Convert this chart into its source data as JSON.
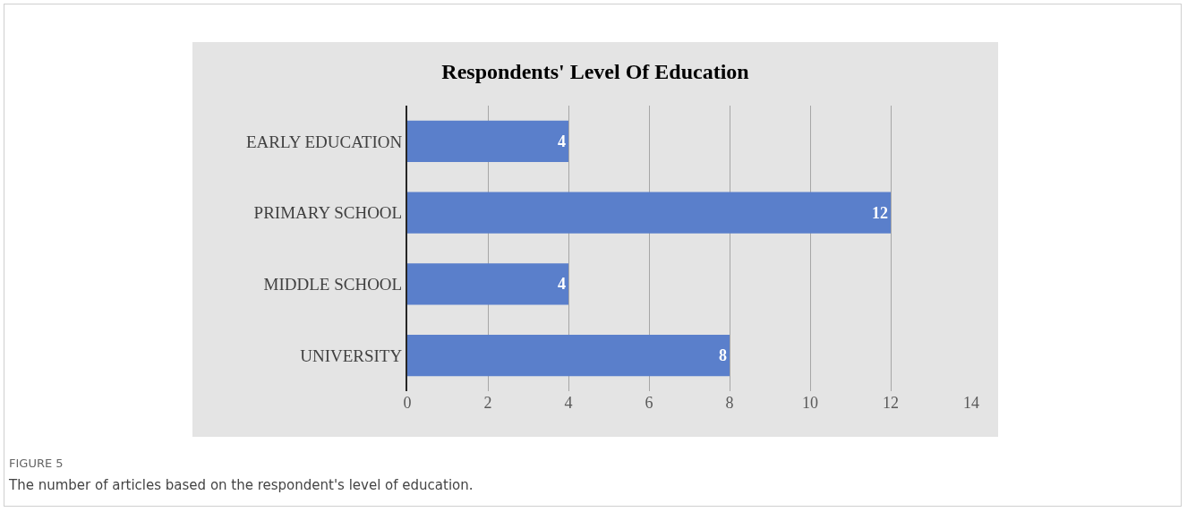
{
  "chart_data": {
    "type": "bar",
    "orientation": "horizontal",
    "title": "Respondents' Level Of Education",
    "categories": [
      "EARLY EDUCATION",
      "PRIMARY SCHOOL",
      "MIDDLE SCHOOL",
      "UNIVERSITY"
    ],
    "values": [
      4,
      12,
      4,
      8
    ],
    "color": "#5a7fcb",
    "xlim": [
      0,
      14
    ],
    "xticks": [
      0,
      2,
      4,
      6,
      8,
      10,
      12,
      14
    ],
    "grid": "x",
    "data_labels": true,
    "annotations": [
      "FIGURE 5",
      "The number of articles based on the respondent's level of education."
    ]
  }
}
